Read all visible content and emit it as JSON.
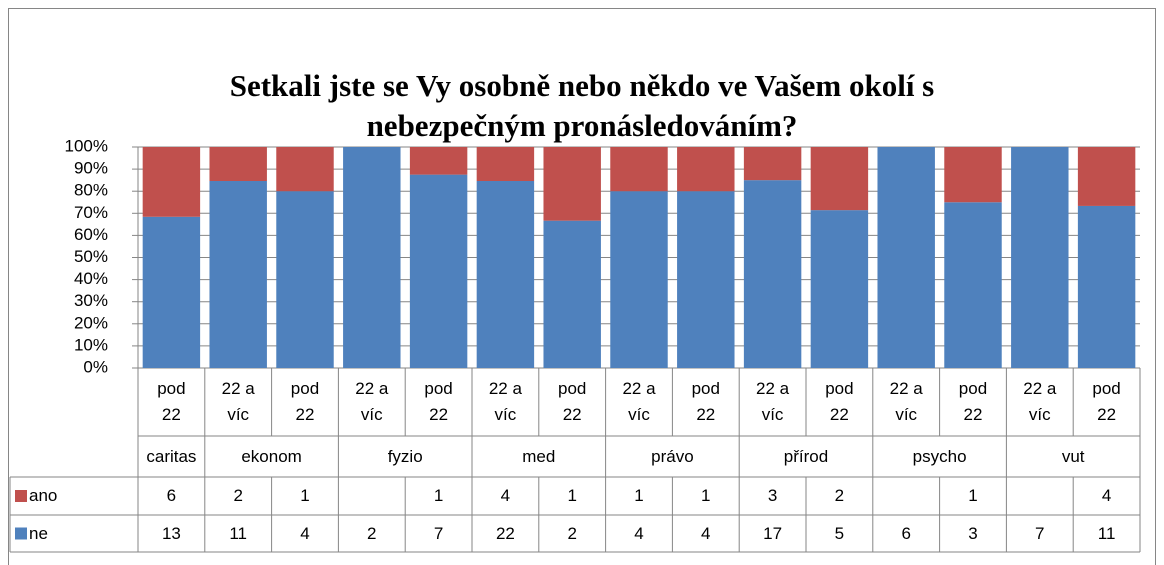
{
  "chart_data": {
    "type": "bar",
    "stacking": "percent",
    "title": "Setkali jste se Vy osobně nebo někdo ve Vašem okolí s nebezpečným pronásledováním?",
    "groups": [
      {
        "name": "caritas",
        "categories": [
          "pod 22"
        ]
      },
      {
        "name": "ekonom",
        "categories": [
          "22 a víc",
          "pod 22"
        ]
      },
      {
        "name": "fyzio",
        "categories": [
          "22 a víc",
          "pod 22"
        ]
      },
      {
        "name": "med",
        "categories": [
          "22 a víc",
          "pod 22"
        ]
      },
      {
        "name": "právo",
        "categories": [
          "22 a víc",
          "pod 22"
        ]
      },
      {
        "name": "přírod",
        "categories": [
          "22 a víc",
          "pod 22"
        ]
      },
      {
        "name": "psycho",
        "categories": [
          "22 a víc",
          "pod 22"
        ]
      },
      {
        "name": "vut",
        "categories": [
          "22 a víc",
          "pod 22"
        ]
      }
    ],
    "series": [
      {
        "name": "ano",
        "color": "#c0504d",
        "values": [
          6,
          2,
          1,
          null,
          1,
          4,
          1,
          1,
          1,
          3,
          2,
          null,
          1,
          null,
          4
        ]
      },
      {
        "name": "ne",
        "color": "#4f81bd",
        "values": [
          13,
          11,
          4,
          2,
          7,
          22,
          2,
          4,
          4,
          17,
          5,
          6,
          3,
          7,
          11
        ]
      }
    ],
    "ylim": [
      0,
      100
    ],
    "yticks": [
      {
        "value": 0,
        "label": "0%"
      },
      {
        "value": 10,
        "label": "10%"
      },
      {
        "value": 20,
        "label": "20%"
      },
      {
        "value": 30,
        "label": "30%"
      },
      {
        "value": 40,
        "label": "40%"
      },
      {
        "value": 50,
        "label": "50%"
      },
      {
        "value": 60,
        "label": "60%"
      },
      {
        "value": 70,
        "label": "70%"
      },
      {
        "value": 80,
        "label": "80%"
      },
      {
        "value": 90,
        "label": "90%"
      },
      {
        "value": 100,
        "label": "100%"
      }
    ],
    "grid": true
  }
}
